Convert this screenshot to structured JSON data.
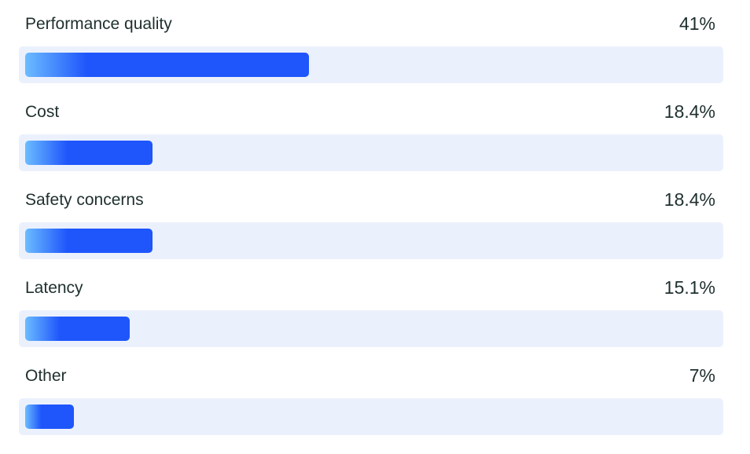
{
  "chart_data": {
    "type": "bar",
    "orientation": "horizontal",
    "categories": [
      "Performance quality",
      "Cost",
      "Safety concerns",
      "Latency",
      "Other"
    ],
    "values": [
      41,
      18.4,
      18.4,
      15.1,
      7
    ],
    "value_labels": [
      "41%",
      "18.4%",
      "18.4%",
      "15.1%",
      "7%"
    ],
    "unit": "%",
    "xlim": [
      0,
      100
    ],
    "grid": false,
    "legend": "none"
  },
  "colors": {
    "bar_start": "#6cbcff",
    "bar_end": "#1f56fb",
    "track": "#ebf1fc",
    "text": "#1e2f2d"
  }
}
